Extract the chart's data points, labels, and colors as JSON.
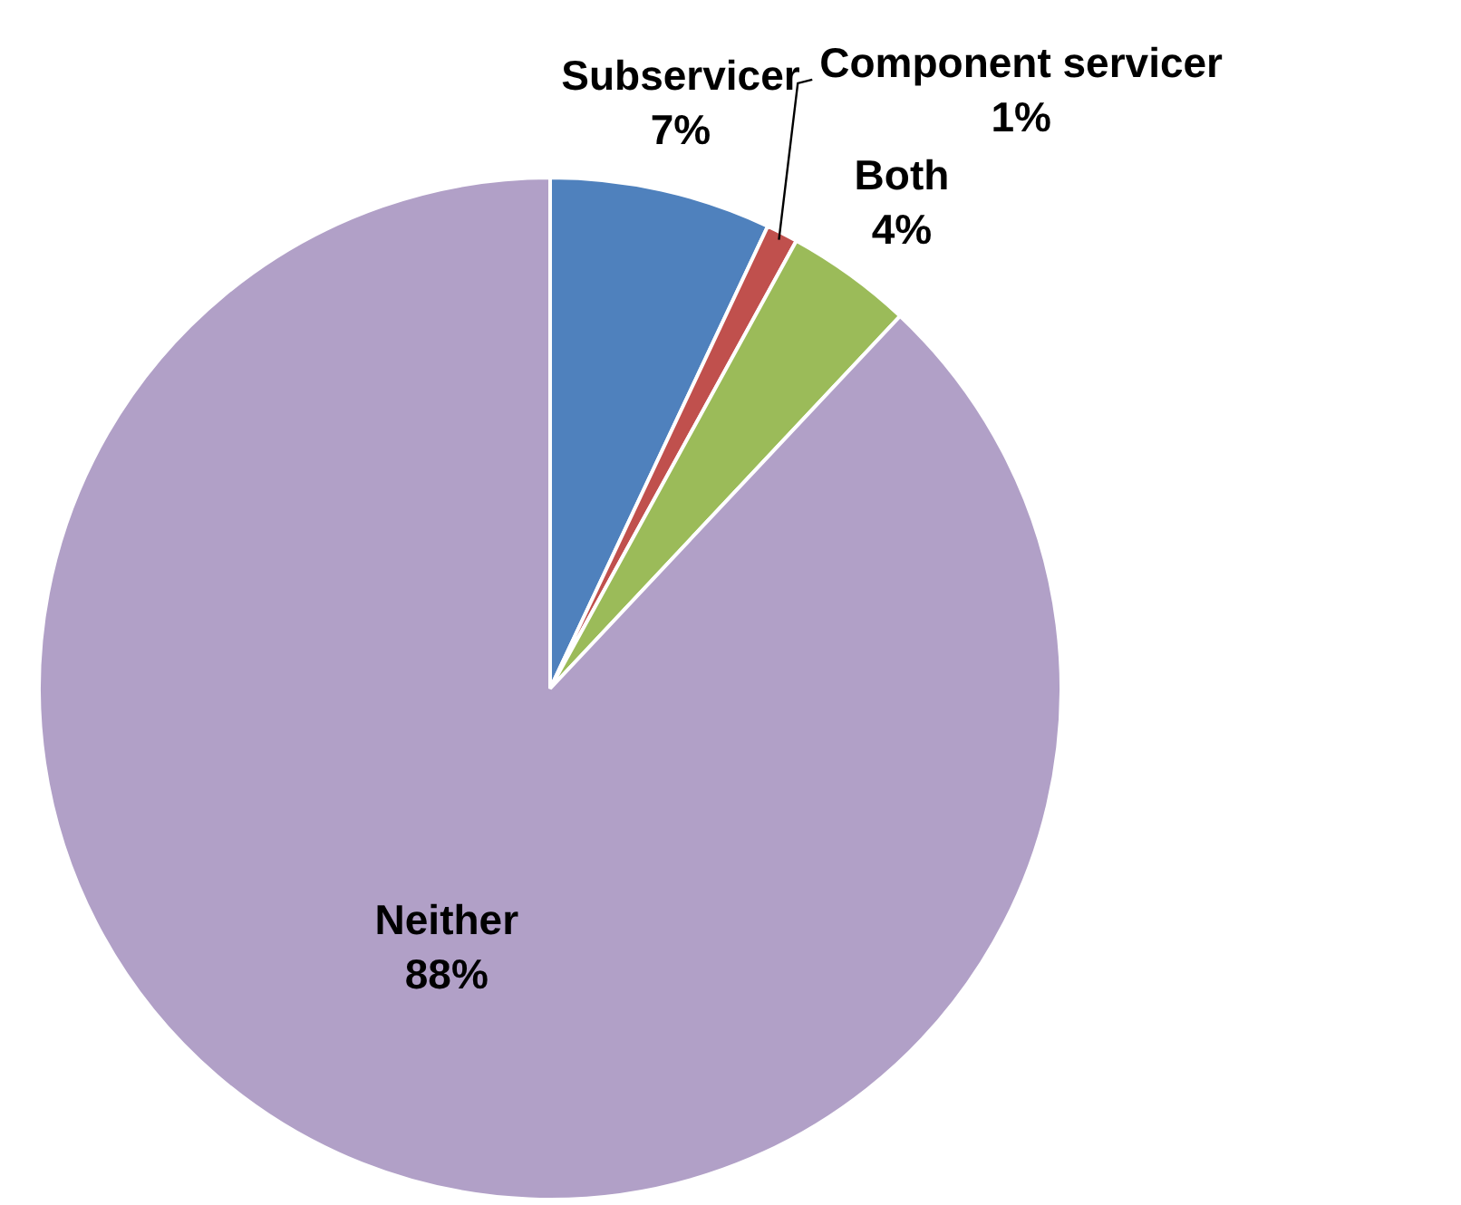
{
  "chart_data": {
    "type": "pie",
    "categories": [
      "Subservicer",
      "Component servicer",
      "Both",
      "Neither"
    ],
    "values": [
      7,
      1,
      4,
      88
    ],
    "value_labels": [
      "7%",
      "1%",
      "4%",
      "88%"
    ],
    "colors": [
      "#4f81bd",
      "#c0504d",
      "#9bbb59",
      "#b1a0c7"
    ],
    "legend": false
  }
}
